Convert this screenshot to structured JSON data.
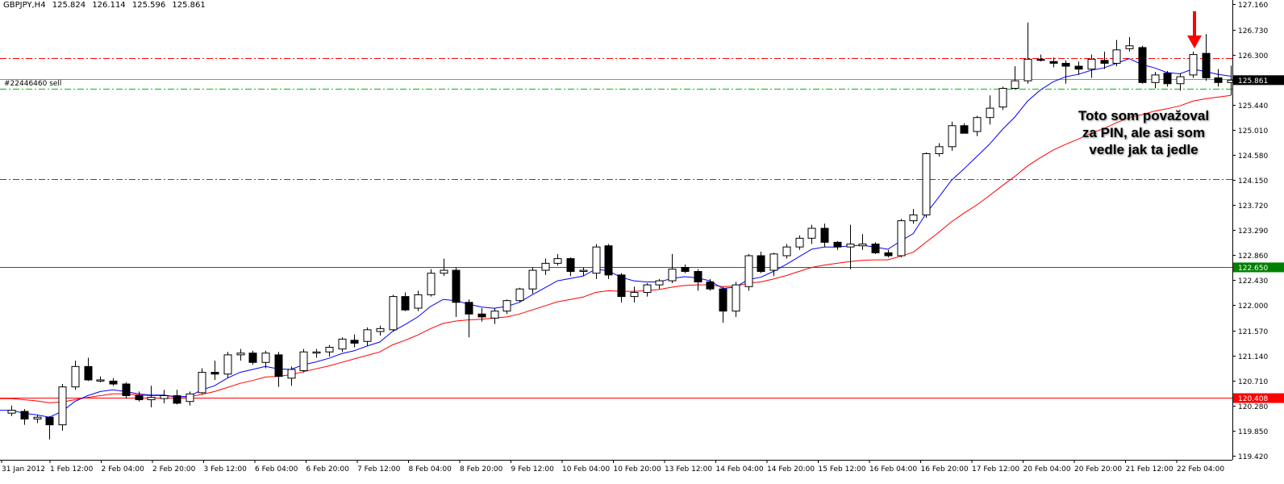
{
  "header": {
    "symbol": "GBPJPY,H4",
    "open": "125.824",
    "high": "126.114",
    "low": "125.596",
    "close": "125.861"
  },
  "order_label": "#22446460 sell",
  "annotation": {
    "lines": [
      "Toto som považoval",
      "za PIN, ale asi som",
      "vedle jak ta jedle"
    ]
  },
  "colors": {
    "background": "#ffffff",
    "bull_body": "#ffffff",
    "bear_body": "#000000",
    "ma_fast": "#0000ff",
    "ma_slow": "#ff0000",
    "level_red_dashdot": "#ff0000",
    "level_green_dashdot": "#00c000",
    "support_line": "#008000",
    "resistance_line": "#ff0000",
    "order_line": "#8090b0",
    "arrow": "#ff0000"
  },
  "chart_data": {
    "type": "candlestick",
    "symbol": "GBPJPY",
    "timeframe": "H4",
    "y_ticks": [
      "127.160",
      "126.730",
      "126.300",
      "125.440",
      "125.010",
      "124.580",
      "124.150",
      "123.720",
      "123.290",
      "122.860",
      "122.430",
      "122.000",
      "121.570",
      "121.140",
      "120.710",
      "120.280",
      "119.850",
      "119.420"
    ],
    "ylim": [
      119.35,
      127.18
    ],
    "x_labels": [
      "31 Jan 2012",
      "1 Feb 12:00",
      "2 Feb 04:00",
      "2 Feb 20:00",
      "3 Feb 12:00",
      "6 Feb 04:00",
      "6 Feb 20:00",
      "7 Feb 12:00",
      "8 Feb 04:00",
      "8 Feb 20:00",
      "9 Feb 12:00",
      "10 Feb 04:00",
      "10 Feb 20:00",
      "13 Feb 12:00",
      "14 Feb 04:00",
      "14 Feb 20:00",
      "15 Feb 12:00",
      "16 Feb 04:00",
      "16 Feb 20:00",
      "17 Feb 12:00",
      "20 Feb 04:00",
      "20 Feb 20:00",
      "21 Feb 12:00",
      "22 Feb 04:00"
    ],
    "price_labels": [
      {
        "text": "125.861",
        "value": 125.861,
        "bg": "#000000"
      },
      {
        "text": "122.650",
        "value": 122.65,
        "bg": "#008000"
      },
      {
        "text": "120.408",
        "value": 120.408,
        "bg": "#ff0000"
      }
    ],
    "levels": [
      {
        "value": 126.24,
        "style": "dashdot",
        "color": "#ff0000"
      },
      {
        "value": 125.72,
        "style": "dashdot",
        "color": "#00c000"
      },
      {
        "value": 124.16,
        "style": "dashdot",
        "color": "#ff0000"
      },
      {
        "value": 125.88,
        "style": "solid",
        "color": "#8090b0"
      },
      {
        "value": 122.65,
        "style": "solid",
        "color": "#008000"
      },
      {
        "value": 120.41,
        "style": "solid",
        "color": "#ff0000"
      }
    ],
    "ohlc": [
      [
        120.15,
        120.28,
        120.1,
        120.2
      ],
      [
        120.18,
        120.22,
        119.95,
        120.05
      ],
      [
        120.05,
        120.12,
        119.98,
        120.08
      ],
      [
        120.08,
        120.1,
        119.7,
        119.95
      ],
      [
        119.95,
        120.65,
        119.85,
        120.6
      ],
      [
        120.6,
        121.05,
        120.55,
        120.95
      ],
      [
        120.95,
        121.1,
        120.7,
        120.72
      ],
      [
        120.7,
        120.78,
        120.68,
        120.72
      ],
      [
        120.7,
        120.75,
        120.62,
        120.65
      ],
      [
        120.65,
        120.68,
        120.4,
        120.45
      ],
      [
        120.45,
        120.52,
        120.35,
        120.38
      ],
      [
        120.38,
        120.62,
        120.25,
        120.42
      ],
      [
        120.4,
        120.55,
        120.32,
        120.45
      ],
      [
        120.45,
        120.55,
        120.3,
        120.32
      ],
      [
        120.35,
        120.52,
        120.28,
        120.48
      ],
      [
        120.5,
        120.92,
        120.48,
        120.85
      ],
      [
        120.85,
        121.05,
        120.72,
        120.82
      ],
      [
        120.82,
        121.2,
        120.75,
        121.15
      ],
      [
        121.15,
        121.25,
        121.05,
        121.18
      ],
      [
        121.18,
        121.22,
        120.98,
        121.02
      ],
      [
        121.02,
        121.22,
        120.92,
        121.18
      ],
      [
        121.15,
        121.2,
        120.6,
        120.78
      ],
      [
        120.75,
        120.95,
        120.62,
        120.9
      ],
      [
        120.88,
        121.25,
        120.85,
        121.2
      ],
      [
        121.18,
        121.25,
        121.1,
        121.2
      ],
      [
        121.2,
        121.32,
        121.12,
        121.28
      ],
      [
        121.25,
        121.45,
        121.2,
        121.42
      ],
      [
        121.4,
        121.5,
        121.28,
        121.35
      ],
      [
        121.38,
        121.62,
        121.3,
        121.58
      ],
      [
        121.55,
        121.65,
        121.48,
        121.6
      ],
      [
        121.58,
        122.18,
        121.55,
        122.15
      ],
      [
        122.15,
        122.22,
        121.9,
        121.92
      ],
      [
        121.95,
        122.25,
        121.9,
        122.18
      ],
      [
        122.18,
        122.62,
        122.15,
        122.55
      ],
      [
        122.55,
        122.8,
        122.5,
        122.6
      ],
      [
        122.6,
        122.65,
        121.8,
        122.05
      ],
      [
        122.05,
        122.1,
        121.45,
        121.85
      ],
      [
        121.85,
        121.95,
        121.72,
        121.8
      ],
      [
        121.78,
        121.95,
        121.68,
        121.9
      ],
      [
        121.9,
        122.1,
        121.85,
        122.08
      ],
      [
        122.08,
        122.3,
        122.05,
        122.28
      ],
      [
        122.28,
        122.65,
        122.2,
        122.6
      ],
      [
        122.6,
        122.8,
        122.52,
        122.72
      ],
      [
        122.72,
        122.88,
        122.68,
        122.8
      ],
      [
        122.8,
        122.82,
        122.5,
        122.58
      ],
      [
        122.58,
        122.65,
        122.5,
        122.6
      ],
      [
        122.55,
        123.05,
        122.45,
        123.0
      ],
      [
        123.02,
        123.05,
        122.45,
        122.52
      ],
      [
        122.52,
        122.55,
        122.05,
        122.15
      ],
      [
        122.15,
        122.32,
        122.05,
        122.22
      ],
      [
        122.22,
        122.38,
        122.15,
        122.35
      ],
      [
        122.35,
        122.45,
        122.28,
        122.42
      ],
      [
        122.42,
        122.88,
        122.38,
        122.62
      ],
      [
        122.65,
        122.7,
        122.55,
        122.58
      ],
      [
        122.58,
        122.62,
        122.25,
        122.4
      ],
      [
        122.4,
        122.45,
        122.25,
        122.28
      ],
      [
        122.28,
        122.32,
        121.7,
        121.9
      ],
      [
        121.9,
        122.4,
        121.8,
        122.35
      ],
      [
        122.32,
        122.88,
        122.25,
        122.85
      ],
      [
        122.85,
        122.92,
        122.55,
        122.58
      ],
      [
        122.6,
        122.9,
        122.5,
        122.88
      ],
      [
        122.85,
        123.05,
        122.8,
        123.0
      ],
      [
        123.0,
        123.2,
        122.95,
        123.15
      ],
      [
        123.15,
        123.38,
        123.05,
        123.32
      ],
      [
        123.32,
        123.4,
        123.0,
        123.08
      ],
      [
        123.08,
        123.1,
        122.95,
        123.0
      ],
      [
        123.0,
        123.38,
        122.62,
        123.05
      ],
      [
        123.02,
        123.22,
        122.95,
        123.05
      ],
      [
        123.05,
        123.08,
        122.88,
        122.9
      ],
      [
        122.9,
        122.95,
        122.82,
        122.85
      ],
      [
        122.85,
        123.48,
        122.82,
        123.45
      ],
      [
        123.45,
        123.65,
        123.4,
        123.55
      ],
      [
        123.55,
        124.62,
        123.5,
        124.6
      ],
      [
        124.6,
        124.78,
        124.55,
        124.72
      ],
      [
        124.72,
        125.15,
        124.65,
        125.08
      ],
      [
        125.08,
        125.12,
        124.95,
        124.95
      ],
      [
        124.98,
        125.25,
        124.9,
        125.22
      ],
      [
        125.22,
        125.6,
        125.1,
        125.38
      ],
      [
        125.4,
        125.75,
        125.35,
        125.72
      ],
      [
        125.72,
        126.1,
        125.7,
        125.85
      ],
      [
        125.85,
        126.85,
        125.8,
        126.22
      ],
      [
        126.22,
        126.3,
        126.18,
        126.2
      ],
      [
        126.18,
        126.25,
        126.08,
        126.15
      ],
      [
        126.15,
        126.2,
        125.8,
        126.1
      ],
      [
        126.1,
        126.18,
        125.95,
        126.05
      ],
      [
        126.05,
        126.3,
        125.9,
        126.22
      ],
      [
        126.2,
        126.35,
        126.05,
        126.15
      ],
      [
        126.15,
        126.55,
        126.1,
        126.38
      ],
      [
        126.4,
        126.6,
        126.35,
        126.45
      ],
      [
        126.42,
        126.45,
        125.8,
        125.82
      ],
      [
        125.82,
        126.0,
        125.72,
        125.95
      ],
      [
        125.98,
        126.02,
        125.75,
        125.8
      ],
      [
        125.8,
        125.98,
        125.68,
        125.92
      ],
      [
        125.95,
        126.35,
        125.9,
        126.3
      ],
      [
        126.32,
        126.65,
        125.85,
        125.9
      ],
      [
        125.9,
        126.05,
        125.75,
        125.82
      ],
      [
        125.82,
        126.11,
        125.6,
        125.86
      ]
    ],
    "ma_fast": [
      120.2,
      120.15,
      120.12,
      120.08,
      120.18,
      120.35,
      120.45,
      120.52,
      120.55,
      120.52,
      120.48,
      120.46,
      120.46,
      120.43,
      120.44,
      120.55,
      120.62,
      120.75,
      120.85,
      120.9,
      120.95,
      120.91,
      120.9,
      120.98,
      121.03,
      121.09,
      121.17,
      121.22,
      121.3,
      121.37,
      121.55,
      121.67,
      121.8,
      121.98,
      122.1,
      122.08,
      122.02,
      121.97,
      121.95,
      121.98,
      122.05,
      122.18,
      122.3,
      122.42,
      122.46,
      122.5,
      122.62,
      122.59,
      122.48,
      122.42,
      122.4,
      122.4,
      122.46,
      122.49,
      122.47,
      122.42,
      122.29,
      122.31,
      122.44,
      122.48,
      122.58,
      122.7,
      122.83,
      122.96,
      123.0,
      123.0,
      123.02,
      123.03,
      123.0,
      122.96,
      123.1,
      123.23,
      123.57,
      123.85,
      124.14,
      124.34,
      124.55,
      124.76,
      125.01,
      125.23,
      125.5,
      125.69,
      125.83,
      125.92,
      125.96,
      126.03,
      126.07,
      126.15,
      126.23,
      126.13,
      126.07,
      125.99,
      125.97,
      126.05,
      126.01,
      125.96,
      125.93
    ],
    "ma_slow": [
      120.4,
      120.38,
      120.36,
      120.33,
      120.34,
      120.38,
      120.42,
      120.45,
      120.48,
      120.48,
      120.46,
      120.45,
      120.45,
      120.43,
      120.43,
      120.47,
      120.52,
      120.59,
      120.66,
      120.71,
      120.77,
      120.78,
      120.81,
      120.86,
      120.91,
      120.96,
      121.02,
      121.08,
      121.14,
      121.2,
      121.32,
      121.4,
      121.49,
      121.6,
      121.69,
      121.73,
      121.75,
      121.76,
      121.78,
      121.8,
      121.85,
      121.92,
      121.99,
      122.06,
      122.1,
      122.14,
      122.22,
      122.25,
      122.24,
      122.24,
      122.25,
      122.27,
      122.31,
      122.34,
      122.35,
      122.35,
      122.32,
      122.33,
      122.38,
      122.4,
      122.45,
      122.51,
      122.58,
      122.65,
      122.69,
      122.72,
      122.75,
      122.77,
      122.78,
      122.78,
      122.84,
      122.91,
      123.08,
      123.25,
      123.43,
      123.58,
      123.72,
      123.88,
      124.05,
      124.21,
      124.39,
      124.53,
      124.66,
      124.76,
      124.85,
      124.95,
      125.03,
      125.13,
      125.22,
      125.27,
      125.33,
      125.37,
      125.42,
      125.5,
      125.54,
      125.57,
      125.6
    ]
  }
}
